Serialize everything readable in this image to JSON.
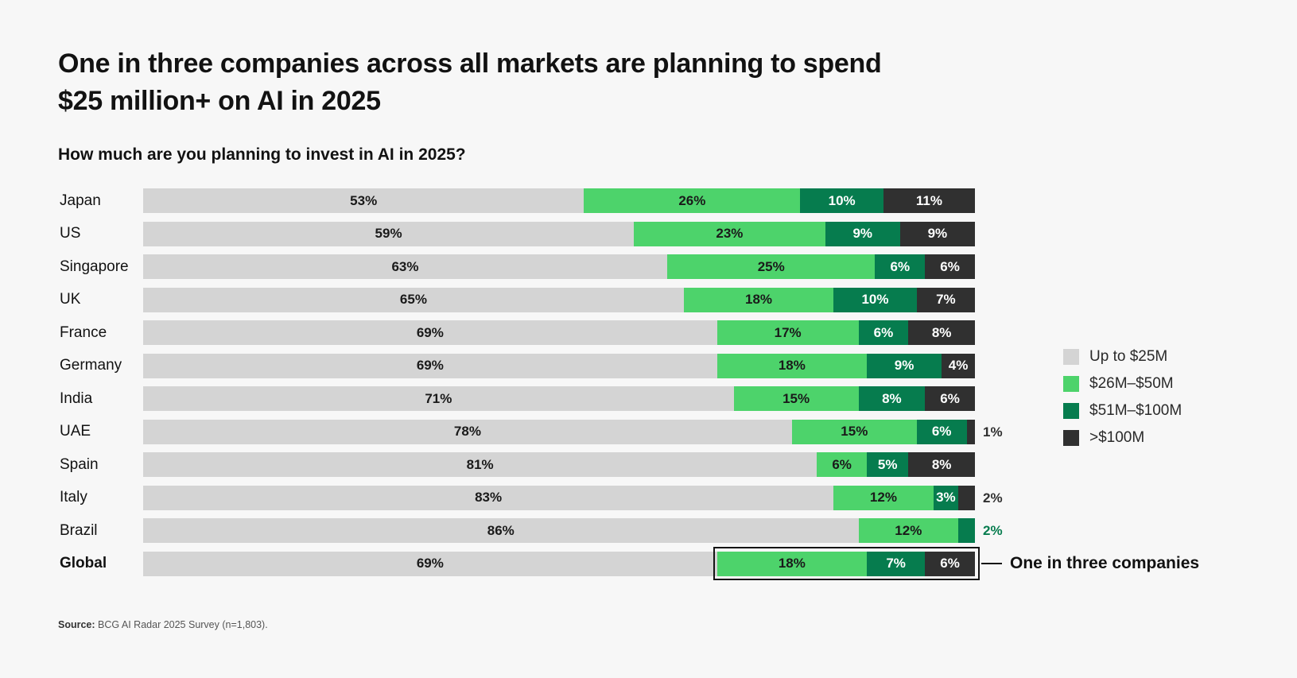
{
  "header": {
    "title_lines": [
      "One in three companies across all markets are planning to spend",
      "$25 million+ on AI in 2025"
    ],
    "question": "How much are you planning to invest in AI in 2025?"
  },
  "source": {
    "label": "Source:",
    "text": "BCG AI Radar 2025 Survey (n=1,803)."
  },
  "colors": {
    "background": "#f7f7f7",
    "up_to_25m": "#d4d4d4",
    "26m_50m": "#4dd36b",
    "51m_100m": "#067c4e",
    "over_100m": "#303030",
    "text_dark": "#1a1a1a",
    "text_light": "#ffffff",
    "highlight_border": "#141414"
  },
  "chart_data": {
    "type": "bar",
    "orientation": "horizontal",
    "stacked": true,
    "value_unit": "%",
    "title": "One in three companies across all markets are planning to spend $25 million+ on AI in 2025",
    "subtitle": "How much are you planning to invest in AI in 2025?",
    "xlim": [
      0,
      100
    ],
    "grid": false,
    "legend_position": "right",
    "categories": [
      "Japan",
      "US",
      "Singapore",
      "UK",
      "France",
      "Germany",
      "India",
      "UAE",
      "Spain",
      "Italy",
      "Brazil",
      "Global"
    ],
    "series": [
      {
        "name": "Up to $25M",
        "color": "#d4d4d4",
        "label_color": "#1a1a1a",
        "values": [
          53,
          59,
          63,
          65,
          69,
          69,
          71,
          78,
          81,
          83,
          86,
          69
        ]
      },
      {
        "name": "$26M–$50M",
        "color": "#4dd36b",
        "label_color": "#1a1a1a",
        "values": [
          26,
          23,
          25,
          18,
          17,
          18,
          15,
          15,
          6,
          12,
          12,
          18
        ]
      },
      {
        "name": "$51M–$100M",
        "color": "#067c4e",
        "label_color": "#ffffff",
        "values": [
          10,
          9,
          6,
          10,
          6,
          9,
          8,
          6,
          5,
          3,
          2,
          7
        ]
      },
      {
        "name": ">$100M",
        "color": "#303030",
        "label_color": "#ffffff",
        "values": [
          11,
          9,
          6,
          7,
          8,
          4,
          6,
          1,
          8,
          2,
          0,
          6
        ]
      }
    ],
    "data_label_format": "{value}%",
    "label_outside_threshold": 3,
    "highlight": {
      "category": "Global",
      "bold_label": true,
      "boxed_from_series_index": 1,
      "annotation": "One in three companies"
    }
  }
}
